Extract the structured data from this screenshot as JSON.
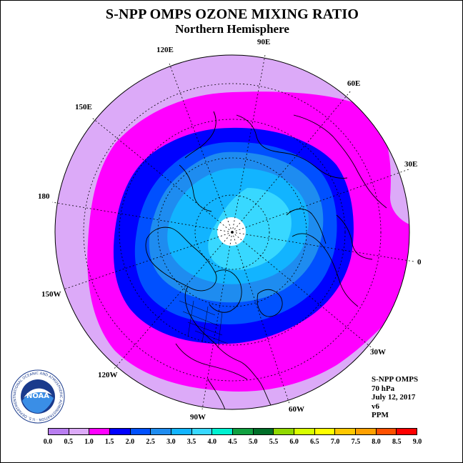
{
  "title": "S-NPP OMPS OZONE MIXING RATIO",
  "subtitle": "Northern Hemisphere",
  "longitude_labels": {
    "lon_90e": "90E",
    "lon_60e": "60E",
    "lon_30e": "30E",
    "lon_0": "0",
    "lon_30w": "30W",
    "lon_60w": "60W",
    "lon_90w": "90W",
    "lon_120w": "120W",
    "lon_150w": "150W",
    "lon_180": "180",
    "lon_150e": "150E",
    "lon_120e": "120E"
  },
  "info": {
    "instrument": "S-NPP OMPS",
    "level": "70 hPa",
    "date": "July 12, 2017",
    "version": "v6",
    "units": "PPM"
  },
  "logo": {
    "text": "NOAA",
    "ring_text": "NATIONAL OCEANIC AND ATMOSPHERIC ADMINISTRATION · U.S. DEPARTMENT OF COMMERCE"
  },
  "colorbar": {
    "ticks": [
      "0.0",
      "0.5",
      "1.0",
      "1.5",
      "2.0",
      "2.5",
      "3.0",
      "3.5",
      "4.0",
      "4.5",
      "5.0",
      "5.5",
      "6.0",
      "6.5",
      "7.0",
      "7.5",
      "8.0",
      "8.5",
      "9.0"
    ],
    "colors": [
      "#b87df0",
      "#dcaaf8",
      "#ff00ff",
      "#0000ff",
      "#0050ff",
      "#1e8cf0",
      "#12b4ff",
      "#38d8ff",
      "#00f0d0",
      "#10a040",
      "#006e28",
      "#90d800",
      "#d8ff00",
      "#ffff00",
      "#ffc800",
      "#ffa000",
      "#ff5000",
      "#ff0000",
      "#8c5a3c"
    ]
  },
  "map_data": {
    "projection": "north polar stereographic",
    "data_gap_at_pole": true,
    "regions_ppm_bins": [
      "0.5-1.0",
      "1.0-1.5",
      "1.5-2.0",
      "2.0-2.5",
      "2.5-3.0",
      "3.0-3.5"
    ]
  }
}
